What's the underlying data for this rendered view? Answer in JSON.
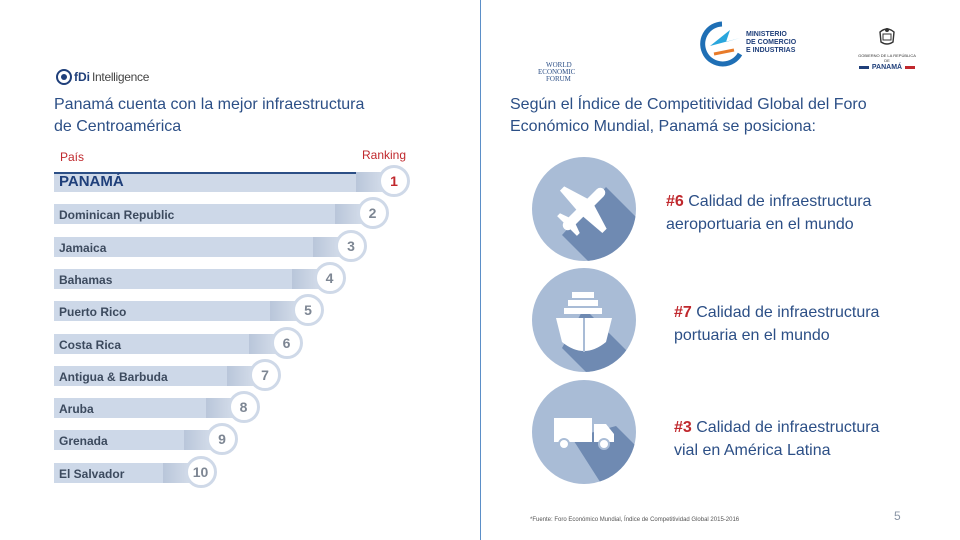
{
  "left": {
    "logo": {
      "bold": "fDi",
      "thin": "Intelligence"
    },
    "heading_line1": "Panamá cuenta con la mejor infraestructura",
    "heading_line2": "de Centroamérica",
    "col_country": "País",
    "col_ranking": "Ranking",
    "ranking": [
      {
        "country": "PANAMÁ",
        "rank": "1"
      },
      {
        "country": "Dominican Republic",
        "rank": "2"
      },
      {
        "country": "Jamaica",
        "rank": "3"
      },
      {
        "country": "Bahamas",
        "rank": "4"
      },
      {
        "country": "Puerto Rico",
        "rank": "5"
      },
      {
        "country": "Costa Rica",
        "rank": "6"
      },
      {
        "country": "Antigua & Barbuda",
        "rank": "7"
      },
      {
        "country": "Aruba",
        "rank": "8"
      },
      {
        "country": "Grenada",
        "rank": "9"
      },
      {
        "country": "El Salvador",
        "rank": "10"
      }
    ]
  },
  "right": {
    "wef_logo": {
      "l1": "WORLD",
      "l2": "ECONOMIC",
      "l3": "FORUM"
    },
    "mici_logo": {
      "l1": "MINISTERIO",
      "l2": "DE COMERCIO",
      "l3": "E INDUSTRIAS"
    },
    "gob_logo": {
      "small": "GOBIERNO DE LA REPÚBLICA DE",
      "name": "PANAMÁ"
    },
    "heading_line1": "Según el Índice de Competitividad Global del Foro",
    "heading_line2": "Económico Mundial, Panamá se posiciona:",
    "items": [
      {
        "icon": "airplane-icon",
        "rank": "#6",
        "line1": " Calidad de infraestructura",
        "line2": "aeroportuaria en el mundo"
      },
      {
        "icon": "ship-icon",
        "rank": "#7",
        "line1": " Calidad de infraestructura",
        "line2": "portuaria en el mundo"
      },
      {
        "icon": "truck-icon",
        "rank": "#3",
        "line1": " Calidad de infraestructura",
        "line2": "vial en América Latina"
      }
    ],
    "footnote": "*Fuente: Foro Económico Mundial, Índice de Competitividad Global 2015-2016"
  },
  "page_number": "5",
  "colors": {
    "title_blue": "#2c4f86",
    "accent_red": "#c0282d",
    "bar": "#cdd8e8",
    "circle": "#a9bcd6",
    "circle_shadow": "#6f8ab2"
  }
}
